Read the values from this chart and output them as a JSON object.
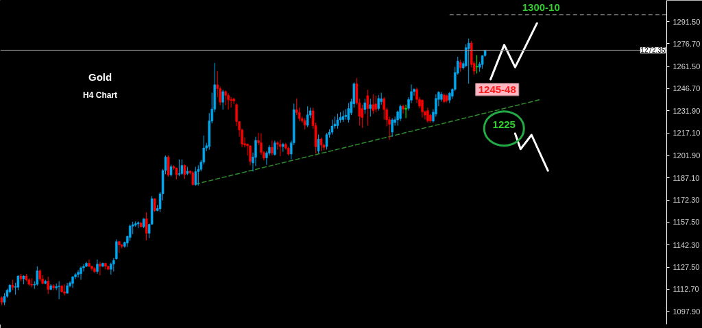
{
  "chart_data": {
    "type": "candlestick",
    "categories": [
      null,
      null,
      null,
      null,
      null,
      null,
      null,
      null,
      null,
      null,
      null,
      null,
      null,
      null,
      null,
      null,
      null,
      null,
      null,
      null,
      null,
      null,
      null,
      null,
      null,
      null,
      null,
      null,
      null,
      null,
      null,
      null,
      null,
      null,
      null,
      null,
      null,
      null,
      null,
      null,
      null,
      null,
      null,
      null,
      null,
      null,
      null,
      null,
      null,
      null,
      null,
      null,
      null,
      null,
      null,
      null,
      null,
      null,
      null,
      null,
      null,
      null,
      null,
      null,
      null,
      null,
      null,
      null,
      null,
      null,
      null,
      null,
      null,
      null,
      null,
      null,
      null,
      null,
      null,
      null,
      null,
      null,
      null,
      null,
      null,
      null,
      null,
      null,
      null,
      null,
      null,
      null,
      null,
      null,
      null,
      null,
      null,
      null,
      null,
      null,
      null,
      null,
      null,
      null,
      null,
      null,
      null,
      null,
      null,
      null,
      null,
      null,
      null,
      null,
      null,
      null,
      null,
      null,
      null,
      null,
      null,
      null,
      null,
      null,
      null,
      null,
      null,
      null,
      null,
      null,
      null,
      null,
      null,
      null,
      null,
      null,
      null,
      null,
      null,
      null,
      null,
      null,
      null,
      null,
      null,
      null,
      null,
      null,
      null,
      null,
      null,
      null,
      null,
      null,
      null,
      null,
      null,
      null,
      null,
      null,
      null,
      null,
      null,
      null,
      null,
      null,
      null,
      null,
      null,
      null,
      null,
      null,
      null,
      null,
      null,
      null,
      null,
      null,
      null,
      null,
      null,
      null,
      null,
      null,
      null,
      null,
      null,
      null,
      null,
      null,
      null,
      null,
      null,
      null,
      null,
      null,
      null,
      null,
      null,
      null,
      null,
      null,
      null,
      null,
      null,
      null,
      null,
      null,
      null,
      null,
      null,
      null,
      null,
      null,
      null,
      null,
      null,
      null,
      null,
      null,
      null,
      null,
      null,
      null,
      null,
      null,
      null,
      null,
      null,
      null,
      null,
      null,
      null,
      null,
      null,
      null,
      null,
      null,
      null,
      null,
      null,
      null,
      null,
      null
    ],
    "ohlc": [
      [
        1107,
        1108,
        1102,
        1104
      ],
      [
        1104,
        1110,
        1102,
        1108
      ],
      [
        1108,
        1113,
        1107,
        1112
      ],
      [
        1111,
        1116,
        1110,
        1115.5
      ],
      [
        1115.5,
        1119,
        1112,
        1114
      ],
      [
        1114,
        1117,
        1109,
        1114.5
      ],
      [
        1114,
        1122,
        1112,
        1121.5
      ],
      [
        1121.5,
        1123,
        1118,
        1119.5
      ],
      [
        1119.5,
        1122,
        1116,
        1121.5
      ],
      [
        1121.5,
        1123,
        1118,
        1119
      ],
      [
        1119,
        1120,
        1115,
        1116
      ],
      [
        1116,
        1120,
        1114,
        1115.5
      ],
      [
        1115.5,
        1118,
        1113,
        1116
      ],
      [
        1116,
        1128,
        1115,
        1125
      ],
      [
        1125,
        1126,
        1118,
        1119.5
      ],
      [
        1119.5,
        1122,
        1116,
        1116.5
      ],
      [
        1116.5,
        1119,
        1116,
        1118
      ],
      [
        1118,
        1121,
        1109.5,
        1112.5
      ],
      [
        1112.5,
        1116,
        1112,
        1115
      ],
      [
        1115,
        1116,
        1112,
        1113.5
      ],
      [
        1113.5,
        1116.5,
        1112,
        1114.5
      ],
      [
        1114.5,
        1118,
        1106,
        1114.8
      ],
      [
        1114.8,
        1115.5,
        1110.5,
        1111
      ],
      [
        1111,
        1116,
        1108.5,
        1110
      ],
      [
        1110,
        1117,
        1110,
        1115
      ],
      [
        1115,
        1118,
        1114,
        1117
      ],
      [
        1116.5,
        1121.5,
        1113.5,
        1121
      ],
      [
        1121,
        1123.5,
        1119.5,
        1122.5
      ],
      [
        1122.5,
        1125.5,
        1120.5,
        1124
      ],
      [
        1123,
        1128,
        1119,
        1127
      ],
      [
        1127,
        1129.5,
        1124.5,
        1128
      ],
      [
        1128,
        1131,
        1127.5,
        1130
      ],
      [
        1130,
        1132.5,
        1127.5,
        1128
      ],
      [
        1128,
        1128.5,
        1125,
        1126.5
      ],
      [
        1126.5,
        1127.5,
        1123.5,
        1124.5
      ],
      [
        1124.5,
        1132.5,
        1123,
        1129.5
      ],
      [
        1129.5,
        1131,
        1122,
        1128
      ],
      [
        1128,
        1130.5,
        1127.5,
        1130
      ],
      [
        1130,
        1130.5,
        1126,
        1128
      ],
      [
        1128,
        1128.5,
        1125.5,
        1126
      ],
      [
        1126,
        1130.5,
        1122.5,
        1129.5
      ],
      [
        1129.5,
        1133.5,
        1124.5,
        1132
      ],
      [
        1133,
        1146,
        1132.5,
        1144.5
      ],
      [
        1144.5,
        1145,
        1137,
        1142.3
      ],
      [
        1142.3,
        1142.8,
        1140,
        1141.3
      ],
      [
        1141.3,
        1144.5,
        1140.5,
        1144
      ],
      [
        1143.5,
        1148.5,
        1141,
        1148
      ],
      [
        1147.3,
        1156,
        1145,
        1155
      ],
      [
        1154.8,
        1157.8,
        1149.5,
        1155.9
      ],
      [
        1155.5,
        1158,
        1154.5,
        1156.6
      ],
      [
        1156.3,
        1158,
        1153.6,
        1157.2
      ],
      [
        1157,
        1157.5,
        1154,
        1154.4
      ],
      [
        1154.4,
        1160,
        1153.5,
        1159.7
      ],
      [
        1159.7,
        1164,
        1145.3,
        1150
      ],
      [
        1150,
        1156.5,
        1146.8,
        1156.1
      ],
      [
        1156.1,
        1175,
        1156,
        1173.2
      ],
      [
        1173.2,
        1173.5,
        1164.4,
        1165.2
      ],
      [
        1165.2,
        1169,
        1164.8,
        1166.7
      ],
      [
        1166.4,
        1177.7,
        1164.2,
        1176.5
      ],
      [
        1176.5,
        1193,
        1172,
        1192
      ],
      [
        1192,
        1202,
        1189.6,
        1201
      ],
      [
        1201,
        1202,
        1188,
        1189
      ],
      [
        1189,
        1196,
        1188,
        1194.6
      ],
      [
        1194.6,
        1195.5,
        1192.5,
        1193.6
      ],
      [
        1193.6,
        1194,
        1186,
        1189
      ],
      [
        1189.5,
        1199.4,
        1188.3,
        1190
      ],
      [
        1190,
        1199.4,
        1189,
        1195.4
      ],
      [
        1195.4,
        1196,
        1186.5,
        1189.3
      ],
      [
        1190,
        1194.5,
        1188.8,
        1191.6
      ],
      [
        1191.6,
        1192,
        1189.5,
        1190.5
      ],
      [
        1190.5,
        1191.5,
        1182,
        1182.5
      ],
      [
        1182.5,
        1194.5,
        1181.8,
        1191.3
      ],
      [
        1191.3,
        1195.5,
        1182,
        1192.8
      ],
      [
        1192.8,
        1199,
        1191.5,
        1197.6
      ],
      [
        1197.6,
        1215.4,
        1196,
        1207.1
      ],
      [
        1207,
        1210.5,
        1205,
        1208.6
      ],
      [
        1208,
        1230.4,
        1205.8,
        1225.2
      ],
      [
        1225,
        1244,
        1223.5,
        1233.1
      ],
      [
        1233,
        1263.9,
        1231,
        1249.3
      ],
      [
        1249.3,
        1258.3,
        1241,
        1246.7
      ],
      [
        1246.7,
        1248,
        1235.7,
        1237.6
      ],
      [
        1237.6,
        1246,
        1232.7,
        1244.7
      ],
      [
        1244.7,
        1245.5,
        1235.7,
        1242.2
      ],
      [
        1242.2,
        1243.5,
        1232.7,
        1239.2
      ],
      [
        1239.4,
        1241,
        1234,
        1238.8
      ],
      [
        1239.8,
        1240.5,
        1236.5,
        1238.4
      ],
      [
        1236,
        1237,
        1221.7,
        1224.7
      ],
      [
        1224.7,
        1225,
        1214.6,
        1219.1
      ],
      [
        1219.1,
        1220,
        1207.8,
        1209.6
      ],
      [
        1210,
        1214,
        1207.5,
        1209
      ],
      [
        1209.6,
        1210,
        1202,
        1208.5
      ],
      [
        1208.5,
        1209,
        1195.5,
        1198.1
      ],
      [
        1197,
        1204,
        1191.4,
        1201
      ],
      [
        1200.8,
        1214.6,
        1195,
        1212.1
      ],
      [
        1212.1,
        1217.2,
        1209,
        1210.5
      ],
      [
        1210.5,
        1216.9,
        1202.5,
        1204.1
      ],
      [
        1204.1,
        1205,
        1198.8,
        1200.3
      ],
      [
        1200.5,
        1205,
        1195.8,
        1203.8
      ],
      [
        1203.5,
        1209,
        1202,
        1207.5
      ],
      [
        1207.5,
        1212,
        1202,
        1203.5
      ],
      [
        1202.6,
        1212,
        1202,
        1210.5
      ],
      [
        1210.5,
        1211.5,
        1206,
        1209.5
      ],
      [
        1209.5,
        1212.5,
        1201.5,
        1208
      ],
      [
        1208,
        1210.5,
        1204.5,
        1209.5
      ],
      [
        1209.5,
        1210.5,
        1206,
        1207
      ],
      [
        1207,
        1208,
        1202,
        1203
      ],
      [
        1203,
        1212,
        1199.5,
        1210.5
      ],
      [
        1210.5,
        1236.7,
        1209,
        1232.7
      ],
      [
        1232.7,
        1240.2,
        1229,
        1230.7
      ],
      [
        1230.7,
        1234,
        1225,
        1226.7
      ],
      [
        1226.7,
        1228,
        1224,
        1225.3
      ],
      [
        1225.3,
        1227,
        1219.5,
        1222.2
      ],
      [
        1222.2,
        1234.9,
        1221,
        1229.2
      ],
      [
        1229,
        1234,
        1227,
        1231.9
      ],
      [
        1231.9,
        1234,
        1220,
        1222
      ],
      [
        1222,
        1224,
        1203.3,
        1207.8
      ],
      [
        1205,
        1216,
        1203.5,
        1213
      ],
      [
        1213,
        1214,
        1205,
        1209
      ],
      [
        1209,
        1210,
        1205.5,
        1207.5
      ],
      [
        1208,
        1217,
        1206,
        1216
      ],
      [
        1216,
        1219.5,
        1214,
        1217.6
      ],
      [
        1217.6,
        1226,
        1216,
        1221.7
      ],
      [
        1221.7,
        1228,
        1220,
        1223
      ],
      [
        1222,
        1230,
        1220,
        1225.9
      ],
      [
        1225.9,
        1231,
        1224,
        1227.5
      ],
      [
        1226,
        1232,
        1224.5,
        1228.2
      ],
      [
        1228,
        1233,
        1226,
        1229
      ],
      [
        1226,
        1237,
        1224,
        1233.4
      ],
      [
        1230.5,
        1240,
        1229,
        1238
      ],
      [
        1236.5,
        1250.8,
        1234,
        1250
      ],
      [
        1250,
        1253.8,
        1236,
        1237.2
      ],
      [
        1237.2,
        1240,
        1222.1,
        1228.2
      ],
      [
        1233.4,
        1236,
        1220.5,
        1227.4
      ],
      [
        1232.7,
        1240,
        1230,
        1237.2
      ],
      [
        1242,
        1246,
        1222,
        1233.4
      ],
      [
        1233.4,
        1240,
        1228,
        1236
      ],
      [
        1236,
        1243,
        1230,
        1232
      ],
      [
        1236.5,
        1242,
        1231,
        1233
      ],
      [
        1233.4,
        1242.5,
        1232,
        1240.2
      ],
      [
        1238,
        1244,
        1236,
        1240
      ],
      [
        1240,
        1241,
        1226,
        1232.7
      ],
      [
        1232.7,
        1234,
        1221.5,
        1225.9
      ],
      [
        1226,
        1228,
        1212.4,
        1222.9
      ],
      [
        1217.6,
        1227,
        1214.5,
        1225.9
      ],
      [
        1224,
        1228,
        1222,
        1226
      ],
      [
        1225.9,
        1232,
        1222,
        1231.2
      ],
      [
        1226.7,
        1236,
        1225,
        1234.9
      ],
      [
        1235,
        1236,
        1230,
        1233
      ],
      [
        1233,
        1236,
        1227,
        1233.5
      ],
      [
        1233.5,
        1241,
        1232,
        1239.5
      ],
      [
        1239,
        1249.5,
        1237,
        1244.7
      ],
      [
        1244.7,
        1247,
        1242,
        1246.2
      ],
      [
        1246.2,
        1247.5,
        1237,
        1239.5
      ],
      [
        1239.5,
        1241,
        1233.5,
        1235
      ],
      [
        1239,
        1239.5,
        1227.4,
        1231.2
      ],
      [
        1231.2,
        1232,
        1226,
        1229
      ],
      [
        1232,
        1234,
        1224,
        1225.2
      ],
      [
        1229,
        1230,
        1224,
        1225.2
      ],
      [
        1225,
        1233,
        1224,
        1231
      ],
      [
        1229.7,
        1243,
        1228,
        1240.2
      ],
      [
        1239.5,
        1245,
        1235,
        1244.3
      ],
      [
        1239.5,
        1244.5,
        1238,
        1243
      ],
      [
        1242.5,
        1243.5,
        1237,
        1238
      ],
      [
        1242,
        1243,
        1237.5,
        1238.8
      ],
      [
        1239,
        1244.5,
        1237,
        1243.6
      ],
      [
        1241.7,
        1247,
        1240,
        1246.2
      ],
      [
        1246.2,
        1261.3,
        1245,
        1257.5
      ],
      [
        1257,
        1268,
        1256,
        1265.1
      ],
      [
        1264.3,
        1266,
        1258,
        1260.6
      ],
      [
        1260.6,
        1265,
        1259.5,
        1263.5
      ],
      [
        1262,
        1276.4,
        1261,
        1274.1
      ],
      [
        1273.3,
        1280.1,
        1250,
        1277.1
      ],
      [
        1277.1,
        1278.6,
        1261,
        1262.8
      ],
      [
        1263.6,
        1265,
        1256,
        1258.3
      ],
      [
        1261.2,
        1269.1,
        1256.8,
        1261.5
      ],
      [
        1261,
        1264.5,
        1258,
        1263.2
      ],
      [
        1262.8,
        1269,
        1260,
        1268.8
      ],
      [
        1268.8,
        1272.6,
        1268,
        1272.35
      ],
      null,
      null,
      null,
      null,
      null,
      null,
      null,
      null,
      null,
      null,
      null,
      null,
      null,
      null,
      null,
      null,
      null,
      null,
      null,
      null,
      null,
      null,
      null,
      null,
      null,
      null,
      null,
      null,
      null,
      null,
      null,
      null,
      null,
      null,
      null,
      null,
      null,
      null,
      null,
      null,
      null,
      null,
      null,
      null,
      null,
      null,
      null,
      null,
      null,
      null,
      null,
      null,
      null,
      null,
      null,
      null,
      null,
      null,
      null,
      null,
      null,
      null,
      null,
      null,
      null,
      null
    ],
    "colors": [
      "#ff0000",
      "#00a8f0",
      "#00a8f0",
      "#00a8f0",
      "#ff0000",
      "#00a8f0",
      "#00a8f0",
      "#ff0000",
      "#00a8f0",
      "#ff0000",
      "#ff0000",
      "#ff0000",
      "#00a8f0",
      "#00a8f0",
      "#ff0000",
      "#ff0000",
      "#00a8f0",
      "#ff0000",
      "#00a8f0",
      "#ff0000",
      "#00a8f0",
      "#00a8f0",
      "#ff0000",
      "#ff0000",
      "#00a8f0",
      "#00a8f0",
      "#00a8f0",
      "#00a8f0",
      "#00a8f0",
      "#00a8f0",
      "#00a8f0",
      "#00a8f0",
      "#ff0000",
      "#ff0000",
      "#ff0000",
      "#00a8f0",
      "#ff0000",
      "#00a8f0",
      "#ff0000",
      "#ff0000",
      "#00a8f0",
      "#00a8f0",
      "#00a8f0",
      "#ff0000",
      "#ff0000",
      "#00a8f0",
      "#00a8f0",
      "#00a8f0",
      "#00a8f0",
      "#00a8f0",
      "#00a8f0",
      "#ff0000",
      "#00a8f0",
      "#ff0000",
      "#00a8f0",
      "#00a8f0",
      "#ff0000",
      "#00a8f0",
      "#00a8f0",
      "#00a8f0",
      "#00a8f0",
      "#ff0000",
      "#00a8f0",
      "#ff0000",
      "#ff0000",
      "#00a8f0",
      "#00a8f0",
      "#ff0000",
      "#00a8f0",
      "#ff0000",
      "#ff0000",
      "#00a8f0",
      "#00a8f0",
      "#00a8f0",
      "#00a8f0",
      "#00a8f0",
      "#00a8f0",
      "#00a8f0",
      "#00a8f0",
      "#ff0000",
      "#ff0000",
      "#00a8f0",
      "#ff0000",
      "#ff0000",
      "#ff0000",
      "#ff0000",
      "#ff0000",
      "#ff0000",
      "#ff0000",
      "#ff0000",
      "#ff0000",
      "#ff0000",
      "#00a8f0",
      "#00a8f0",
      "#ff0000",
      "#ff0000",
      "#ff0000",
      "#00a8f0",
      "#00a8f0",
      "#ff0000",
      "#00a8f0",
      "#ff0000",
      "#ff0000",
      "#00a8f0",
      "#ff0000",
      "#ff0000",
      "#00a8f0",
      "#00a8f0",
      "#ff0000",
      "#ff0000",
      "#ff0000",
      "#ff0000",
      "#00a8f0",
      "#00a8f0",
      "#ff0000",
      "#ff0000",
      "#00a8f0",
      "#ff0000",
      "#ff0000",
      "#00a8f0",
      "#00a8f0",
      "#00a8f0",
      "#00a8f0",
      "#00a8f0",
      "#00a8f0",
      "#00a8f0",
      "#00a8f0",
      "#00a8f0",
      "#00a8f0",
      "#00a8f0",
      "#ff0000",
      "#ff0000",
      "#ff0000",
      "#00a8f0",
      "#ff0000",
      "#00a8f0",
      "#ff0000",
      "#ff0000",
      "#00a8f0",
      "#00a8f0",
      "#ff0000",
      "#ff0000",
      "#ff0000",
      "#00a8f0",
      "#00a8f0",
      "#00a8f0",
      "#00a8f0",
      "#ff0000",
      "#00ff00",
      "#00a8f0",
      "#00a8f0",
      "#00a8f0",
      "#ff0000",
      "#ff0000",
      "#ff0000",
      "#ff0000",
      "#ff0000",
      "#ff0000",
      "#00a8f0",
      "#00a8f0",
      "#00a8f0",
      "#00a8f0",
      "#ff0000",
      "#ff0000",
      "#00a8f0",
      "#00a8f0",
      "#00a8f0",
      "#00a8f0",
      "#ff0000",
      "#00a8f0",
      "#00a8f0",
      "#00a8f0",
      "#ff0000",
      "#ff0000",
      "#00ff00",
      "#00a8f0",
      "#00a8f0",
      "#00a8f0",
      null,
      null,
      null,
      null,
      null,
      null,
      null,
      null,
      null,
      null,
      null,
      null,
      null,
      null,
      null,
      null,
      null,
      null,
      null,
      null,
      null,
      null,
      null,
      null,
      null,
      null,
      null,
      null,
      null,
      null,
      null,
      null,
      null,
      null,
      null,
      null,
      null,
      null,
      null,
      null,
      null,
      null,
      null,
      null,
      null,
      null,
      null,
      null,
      null,
      null,
      null,
      null,
      null,
      null,
      null,
      null,
      null,
      null,
      null,
      null,
      null,
      null,
      null,
      null,
      null,
      null
    ],
    "series": [
      {
        "type": "line",
        "color": "#2e8b2e",
        "line_style": "dashed",
        "values": [
          null,
          null,
          null,
          null,
          null,
          null,
          null,
          null,
          null,
          null,
          null,
          null,
          null,
          null,
          null,
          null,
          null,
          null,
          null,
          null,
          null,
          null,
          null,
          null,
          null,
          null,
          null,
          null,
          null,
          null,
          null,
          null,
          null,
          null,
          null,
          null,
          null,
          null,
          null,
          null,
          null,
          null,
          null,
          null,
          null,
          null,
          null,
          null,
          null,
          null,
          null,
          null,
          null,
          null,
          null,
          null,
          null,
          null,
          null,
          null,
          null,
          null,
          null,
          null,
          null,
          null,
          null,
          null,
          null,
          null,
          null,
          1182.9,
          null,
          null,
          null,
          null,
          null,
          null,
          null,
          null,
          null,
          null,
          null,
          null,
          null,
          null,
          null,
          null,
          null,
          null,
          null,
          null,
          null,
          null,
          null,
          null,
          null,
          null,
          null,
          null,
          null,
          null,
          null,
          null,
          null,
          null,
          null,
          null,
          null,
          null,
          null,
          null,
          null,
          null,
          null,
          null,
          null,
          null,
          null,
          null,
          null,
          null,
          null,
          null,
          null,
          null,
          null,
          null,
          null,
          null,
          null,
          null,
          null,
          null,
          null,
          null,
          null,
          null,
          null,
          null,
          null,
          null,
          null,
          null,
          null,
          null,
          null,
          null,
          null,
          null,
          null,
          null,
          null,
          null,
          null,
          null,
          null,
          null,
          null,
          null,
          null,
          null,
          null,
          null,
          null,
          null,
          null,
          null,
          null,
          null,
          null,
          null,
          null,
          null,
          null,
          null,
          null,
          null,
          null,
          null,
          null,
          null,
          null,
          null,
          null,
          null,
          null,
          null,
          null,
          null,
          null,
          null,
          null,
          null,
          null,
          null,
          null,
          1239.3,
          null,
          null,
          null,
          null,
          null,
          null,
          null,
          null,
          null,
          null,
          null,
          null,
          null,
          null,
          null,
          null,
          null,
          null,
          null,
          null,
          null,
          null,
          null,
          null,
          null,
          null,
          null,
          null,
          null,
          null,
          null,
          null,
          null,
          null,
          null,
          null,
          null,
          null,
          null,
          null,
          null,
          null,
          null,
          null,
          null,
          null
        ]
      },
      {
        "type": "line",
        "color": "#ffffff",
        "line_style": "solid",
        "values": [
          null,
          null,
          null,
          null,
          null,
          null,
          null,
          null,
          null,
          null,
          null,
          null,
          null,
          null,
          null,
          null,
          null,
          null,
          null,
          null,
          null,
          null,
          null,
          null,
          null,
          null,
          null,
          null,
          null,
          null,
          null,
          null,
          null,
          null,
          null,
          null,
          null,
          null,
          null,
          null,
          null,
          null,
          null,
          null,
          null,
          null,
          null,
          null,
          null,
          null,
          null,
          null,
          null,
          null,
          null,
          null,
          null,
          null,
          null,
          null,
          null,
          null,
          null,
          null,
          null,
          null,
          null,
          null,
          null,
          null,
          null,
          null,
          null,
          null,
          null,
          null,
          null,
          null,
          null,
          null,
          null,
          null,
          null,
          null,
          null,
          null,
          null,
          null,
          null,
          null,
          null,
          null,
          null,
          null,
          null,
          null,
          null,
          null,
          null,
          null,
          null,
          null,
          null,
          null,
          null,
          null,
          null,
          null,
          null,
          null,
          null,
          null,
          null,
          null,
          null,
          null,
          null,
          null,
          null,
          null,
          null,
          null,
          null,
          null,
          null,
          null,
          null,
          null,
          null,
          null,
          null,
          null,
          null,
          null,
          null,
          null,
          null,
          null,
          null,
          null,
          null,
          null,
          null,
          null,
          null,
          null,
          null,
          null,
          null,
          null,
          null,
          null,
          null,
          null,
          null,
          null,
          null,
          null,
          null,
          null,
          null,
          null,
          null,
          null,
          null,
          null,
          null,
          null,
          null,
          null,
          null,
          null,
          null,
          null,
          null,
          null,
          null,
          null,
          null,
          1252.9,
          null,
          null,
          null,
          null,
          1275.9,
          null,
          null,
          null,
          1261,
          null,
          null,
          null,
          null,
          null,
          null,
          null,
          1290.4,
          null,
          null,
          null,
          null,
          null,
          null,
          null,
          null,
          null,
          null,
          null,
          null,
          null,
          null,
          null,
          null,
          null,
          null,
          null,
          null,
          null,
          null,
          null,
          null,
          null,
          null,
          null,
          null,
          null,
          null,
          null,
          null,
          null,
          null,
          null,
          null,
          null,
          null,
          null,
          null,
          null,
          null,
          null,
          null,
          null,
          null,
          null
        ]
      },
      {
        "type": "line",
        "color": "#ffffff",
        "line_style": "solid",
        "values": [
          null,
          null,
          null,
          null,
          null,
          null,
          null,
          null,
          null,
          null,
          null,
          null,
          null,
          null,
          null,
          null,
          null,
          null,
          null,
          null,
          null,
          null,
          null,
          null,
          null,
          null,
          null,
          null,
          null,
          null,
          null,
          null,
          null,
          null,
          null,
          null,
          null,
          null,
          null,
          null,
          null,
          null,
          null,
          null,
          null,
          null,
          null,
          null,
          null,
          null,
          null,
          null,
          null,
          null,
          null,
          null,
          null,
          null,
          null,
          null,
          null,
          null,
          null,
          null,
          null,
          null,
          null,
          null,
          null,
          null,
          null,
          null,
          null,
          null,
          null,
          null,
          null,
          null,
          null,
          null,
          null,
          null,
          null,
          null,
          null,
          null,
          null,
          null,
          null,
          null,
          null,
          null,
          null,
          null,
          null,
          null,
          null,
          null,
          null,
          null,
          null,
          null,
          null,
          null,
          null,
          null,
          null,
          null,
          null,
          null,
          null,
          null,
          null,
          null,
          null,
          null,
          null,
          null,
          null,
          null,
          null,
          null,
          null,
          null,
          null,
          null,
          null,
          null,
          null,
          null,
          null,
          null,
          null,
          null,
          null,
          null,
          null,
          null,
          null,
          null,
          null,
          null,
          null,
          null,
          null,
          null,
          null,
          null,
          null,
          null,
          null,
          null,
          null,
          null,
          null,
          null,
          null,
          null,
          null,
          null,
          null,
          null,
          null,
          null,
          null,
          null,
          null,
          null,
          null,
          null,
          null,
          null,
          null,
          null,
          null,
          null,
          null,
          null,
          null,
          null,
          null,
          null,
          null,
          null,
          null,
          null,
          null,
          null,
          1216.7,
          null,
          1206.3,
          null,
          null,
          null,
          1215.8,
          null,
          null,
          null,
          null,
          null,
          1191.9,
          null,
          null,
          null,
          null,
          null,
          null,
          null,
          null,
          null,
          null,
          null,
          null,
          null,
          null,
          null,
          null,
          null,
          null,
          null,
          null,
          null,
          null,
          null,
          null,
          null,
          null,
          null,
          null,
          null,
          null,
          null,
          null,
          null,
          null,
          null,
          null,
          null,
          null,
          null,
          null,
          null,
          null,
          null
        ]
      }
    ],
    "ylim": [
      1089.3,
      1305.7
    ],
    "yticks": [
      {
        "value": 1097.9,
        "label": "1097.90"
      },
      {
        "value": 1112.7,
        "label": "1112.70"
      },
      {
        "value": 1127.5,
        "label": "1127.50"
      },
      {
        "value": 1142.3,
        "label": "1142.30"
      },
      {
        "value": 1157.5,
        "label": "1157.50"
      },
      {
        "value": 1172.3,
        "label": "1172.30"
      },
      {
        "value": 1187.1,
        "label": "1187.10"
      },
      {
        "value": 1201.9,
        "label": "1201.90"
      },
      {
        "value": 1217.1,
        "label": "1217.10"
      },
      {
        "value": 1231.9,
        "label": "1231.90"
      },
      {
        "value": 1246.7,
        "label": "1246.70"
      },
      {
        "value": 1261.5,
        "label": "1261.50"
      },
      {
        "value": 1276.7,
        "label": "1276.70"
      },
      {
        "value": 1291.5,
        "label": "1291.50"
      }
    ],
    "tick_labels": "y",
    "ref_lines": [
      {
        "axis": "y",
        "value": 1296,
        "color": "#aaaaaa",
        "line_style": "dashed"
      },
      {
        "axis": "y",
        "value": 1272.35,
        "label": "1272.35",
        "color": "#8c8c8c"
      }
    ],
    "annotations": [
      "Gold",
      "H4 Chart",
      {
        "text": "1300-10",
        "y": 1296
      },
      "1245-48",
      "1225"
    ]
  }
}
